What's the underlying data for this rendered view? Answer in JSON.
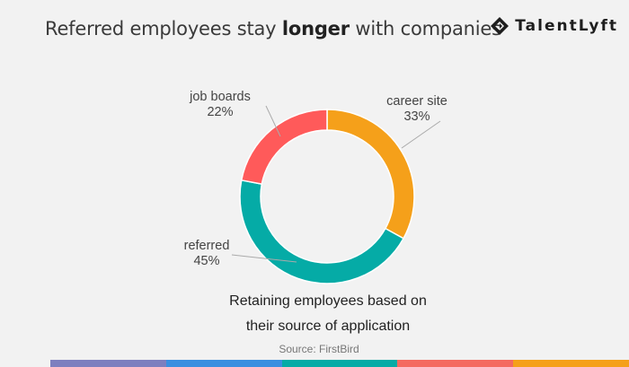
{
  "header": {
    "title_before": "Referred employees stay ",
    "title_bold": "longer",
    "title_after": " with companies",
    "logo_text": "TalentLyft"
  },
  "chart_data": {
    "type": "pie",
    "donut": true,
    "slices": [
      {
        "name": "career site",
        "value": 33,
        "label": "33%",
        "color": "#f5a01a"
      },
      {
        "name": "referred",
        "value": 45,
        "label": "45%",
        "color": "#05aba6"
      },
      {
        "name": "job boards",
        "value": 22,
        "label": "22%",
        "color": "#ff5a5a"
      }
    ],
    "subtitle_line1": "Retaining employees based on",
    "subtitle_line2": "their source of application",
    "source": "Source: FirstBird"
  },
  "colorbar": [
    "#7d7fbf",
    "#3a8fe0",
    "#05aba6",
    "#f46a60",
    "#f5a01a"
  ]
}
